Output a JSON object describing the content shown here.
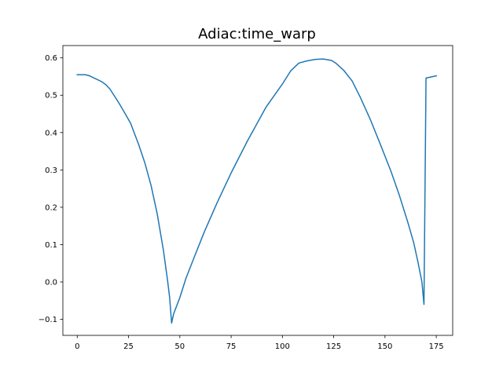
{
  "chart_data": {
    "type": "line",
    "title": "Adiac:time_warp",
    "xlabel": "",
    "ylabel": "",
    "xlim": [
      -7,
      183
    ],
    "ylim": [
      -0.143,
      0.633
    ],
    "xticks": [
      0,
      25,
      50,
      75,
      100,
      125,
      150,
      175
    ],
    "yticks": [
      -0.1,
      0.0,
      0.1,
      0.2,
      0.3,
      0.4,
      0.5,
      0.6
    ],
    "ytick_labels": [
      "−0.1",
      "0.0",
      "0.1",
      "0.2",
      "0.3",
      "0.4",
      "0.5",
      "0.6"
    ],
    "grid": false,
    "legend": "none",
    "color": "#1f77b4",
    "series": [
      {
        "points": [
          [
            0,
            0.555
          ],
          [
            4,
            0.555
          ],
          [
            6,
            0.552
          ],
          [
            9,
            0.544
          ],
          [
            12,
            0.536
          ],
          [
            14,
            0.528
          ],
          [
            16,
            0.516
          ],
          [
            20,
            0.482
          ],
          [
            23,
            0.454
          ],
          [
            26,
            0.425
          ],
          [
            30,
            0.367
          ],
          [
            33,
            0.318
          ],
          [
            36,
            0.258
          ],
          [
            39,
            0.182
          ],
          [
            42,
            0.085
          ],
          [
            44,
            0.005
          ],
          [
            45,
            -0.04
          ],
          [
            46,
            -0.11
          ],
          [
            47,
            -0.085
          ],
          [
            50,
            -0.042
          ],
          [
            53,
            0.01
          ],
          [
            57,
            0.066
          ],
          [
            62,
            0.135
          ],
          [
            68,
            0.21
          ],
          [
            75,
            0.292
          ],
          [
            83,
            0.378
          ],
          [
            92,
            0.468
          ],
          [
            100,
            0.53
          ],
          [
            104,
            0.565
          ],
          [
            108,
            0.586
          ],
          [
            112,
            0.592
          ],
          [
            116,
            0.596
          ],
          [
            120,
            0.597
          ],
          [
            124,
            0.593
          ],
          [
            126,
            0.586
          ],
          [
            130,
            0.566
          ],
          [
            134,
            0.538
          ],
          [
            138,
            0.494
          ],
          [
            143,
            0.433
          ],
          [
            148,
            0.365
          ],
          [
            153,
            0.295
          ],
          [
            157,
            0.232
          ],
          [
            161,
            0.162
          ],
          [
            164,
            0.105
          ],
          [
            166,
            0.055
          ],
          [
            168,
            0.0
          ],
          [
            169,
            -0.06
          ],
          [
            170,
            0.546
          ],
          [
            175,
            0.552
          ]
        ]
      }
    ]
  }
}
